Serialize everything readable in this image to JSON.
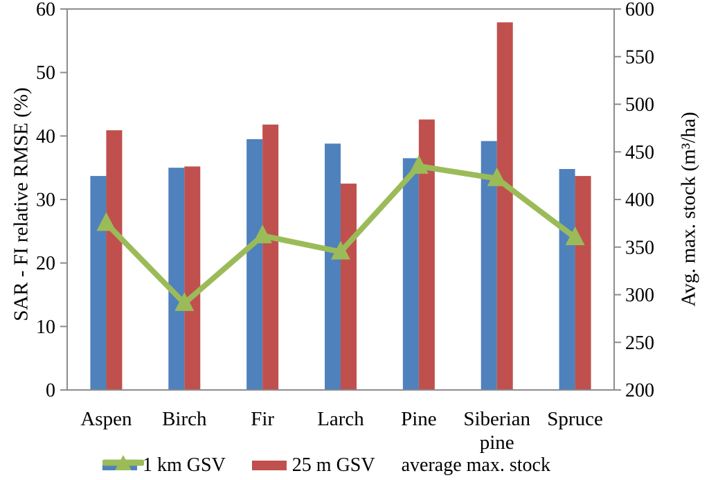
{
  "chart_data": {
    "type": "bar",
    "title": "",
    "categories": [
      "Aspen",
      "Birch",
      "Fir",
      "Larch",
      "Pine",
      "Siberian pine",
      "Spruce"
    ],
    "left_axis": {
      "label": "SAR - FI relative RMSE (%)",
      "min": 0,
      "max": 60,
      "step": 10,
      "ticks": [
        0,
        10,
        20,
        30,
        40,
        50,
        60
      ]
    },
    "right_axis": {
      "label": "Avg. max. stock (m³/ha)",
      "min": 200,
      "max": 600,
      "step": 50,
      "ticks": [
        200,
        250,
        300,
        350,
        400,
        450,
        500,
        550,
        600
      ]
    },
    "series": [
      {
        "name": "1 km GSV",
        "type": "bar",
        "axis": "left",
        "color": "#4F81BD",
        "values": [
          33.7,
          35.0,
          39.5,
          38.8,
          36.5,
          39.2,
          34.8
        ]
      },
      {
        "name": "25 m GSV",
        "type": "bar",
        "axis": "left",
        "color": "#C0504D",
        "values": [
          40.9,
          35.2,
          41.8,
          32.5,
          42.6,
          57.9,
          33.7
        ]
      },
      {
        "name": "average max. stock",
        "type": "line",
        "axis": "right",
        "color": "#9BBB59",
        "marker": "triangle-up",
        "values": [
          375,
          291,
          362,
          345,
          435,
          422,
          360
        ]
      }
    ],
    "legend_position": "bottom",
    "grid": false,
    "axis_line_color": "#8C8C8C",
    "text_color": "#000000",
    "background_color": "#FFFFFF"
  }
}
